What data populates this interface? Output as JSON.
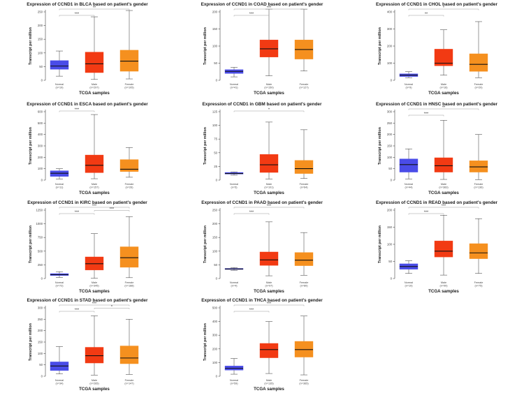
{
  "chart_data": [
    {
      "type": "box",
      "title": "Expression of CCND1 in BLCA based on patient's gender",
      "xlabel": "TCGA samples",
      "ylabel": "Transcript per million",
      "ylim": [
        0,
        250
      ],
      "yticks": [
        0,
        50,
        100,
        150,
        200,
        250
      ],
      "boxes": [
        {
          "name": "Normal",
          "n": "(n=19)",
          "color": "#4a4ce8",
          "min": 15,
          "q1": 40,
          "median": 52,
          "q3": 72,
          "max": 107
        },
        {
          "name": "Male",
          "n": "(n=297)",
          "color": "#f23a13",
          "min": 3,
          "q1": 28,
          "median": 60,
          "q3": 103,
          "max": 232
        },
        {
          "name": "Female",
          "n": "(n=105)",
          "color": "#f5901f",
          "min": 5,
          "q1": 33,
          "median": 70,
          "q3": 110,
          "max": 255
        }
      ],
      "significance": [
        {
          "from": 0,
          "to": 1,
          "label": "***"
        },
        {
          "from": 0,
          "to": 2,
          "label": "**"
        }
      ]
    },
    {
      "type": "box",
      "title": "Expression of CCND1 in COAD based on patient's gender",
      "xlabel": "TCGA samples",
      "ylabel": "Transcript per million",
      "ylim": [
        0,
        200
      ],
      "yticks": [
        0,
        50,
        100,
        150,
        200
      ],
      "boxes": [
        {
          "name": "Normal",
          "n": "(n=41)",
          "color": "#4a4ce8",
          "min": 10,
          "q1": 20,
          "median": 26,
          "q3": 31,
          "max": 38
        },
        {
          "name": "Male",
          "n": "(n=150)",
          "color": "#f23a13",
          "min": 13,
          "q1": 68,
          "median": 92,
          "q3": 118,
          "max": 208
        },
        {
          "name": "Female",
          "n": "(n=127)",
          "color": "#f5901f",
          "min": 27,
          "q1": 62,
          "median": 90,
          "q3": 118,
          "max": 208
        }
      ],
      "significance": [
        {
          "from": 0,
          "to": 1,
          "label": "***"
        },
        {
          "from": 0,
          "to": 2,
          "label": "***"
        }
      ]
    },
    {
      "type": "box",
      "title": "Expression of CCND1 in CHOL based on patient's gender",
      "xlabel": "TCGA samples",
      "ylabel": "Transcript per million",
      "ylim": [
        0,
        400
      ],
      "yticks": [
        0,
        100,
        200,
        300,
        400
      ],
      "boxes": [
        {
          "name": "Normal",
          "n": "(n=9)",
          "color": "#4a4ce8",
          "min": 15,
          "q1": 22,
          "median": 30,
          "q3": 38,
          "max": 50
        },
        {
          "name": "Male",
          "n": "(n=16)",
          "color": "#f23a13",
          "min": 30,
          "q1": 85,
          "median": 100,
          "q3": 182,
          "max": 295
        },
        {
          "name": "Female",
          "n": "(n=20)",
          "color": "#f5901f",
          "min": 15,
          "q1": 52,
          "median": 93,
          "q3": 155,
          "max": 343
        }
      ],
      "significance": [
        {
          "from": 0,
          "to": 1,
          "label": "**"
        },
        {
          "from": 0,
          "to": 2,
          "label": "*"
        }
      ]
    },
    {
      "type": "box",
      "title": "Expression of CCND1 in ESCA based on patient's gender",
      "xlabel": "TCGA samples",
      "ylabel": "Transcript per million",
      "ylim": [
        0,
        600
      ],
      "yticks": [
        0,
        100,
        200,
        300,
        400,
        500,
        600
      ],
      "boxes": [
        {
          "name": "Normal",
          "n": "(n=11)",
          "color": "#4a4ce8",
          "min": 10,
          "q1": 32,
          "median": 60,
          "q3": 82,
          "max": 100
        },
        {
          "name": "Male",
          "n": "(n=157)",
          "color": "#f23a13",
          "min": 12,
          "q1": 65,
          "median": 130,
          "q3": 220,
          "max": 575
        },
        {
          "name": "Female",
          "n": "(n=26)",
          "color": "#f5901f",
          "min": 25,
          "q1": 75,
          "median": 95,
          "q3": 180,
          "max": 285
        }
      ],
      "significance": [
        {
          "from": 0,
          "to": 1,
          "label": "***"
        }
      ]
    },
    {
      "type": "box",
      "title": "Expression of CCND1 in GBM based on patient's gender",
      "xlabel": "TCGA samples",
      "ylabel": "Transcript per million",
      "ylim": [
        0,
        125
      ],
      "yticks": [
        0,
        25,
        50,
        75,
        100,
        125
      ],
      "boxes": [
        {
          "name": "Normal",
          "n": "(n=5)",
          "color": "#4a4ce8",
          "min": 9,
          "q1": 11,
          "median": 12,
          "q3": 14,
          "max": 15
        },
        {
          "name": "Male",
          "n": "(n=101)",
          "color": "#f23a13",
          "min": 2,
          "q1": 14,
          "median": 28,
          "q3": 47,
          "max": 106
        },
        {
          "name": "Female",
          "n": "(n=64)",
          "color": "#f5901f",
          "min": 3,
          "q1": 12,
          "median": 21,
          "q3": 36,
          "max": 92
        }
      ],
      "significance": [
        {
          "from": 0,
          "to": 2,
          "label": "*"
        }
      ]
    },
    {
      "type": "box",
      "title": "Expression of CCND1 in HNSC based on patient's gender",
      "xlabel": "TCGA samples",
      "ylabel": "Transcript per million",
      "ylim": [
        0,
        300
      ],
      "yticks": [
        0,
        50,
        100,
        150,
        200,
        250,
        300
      ],
      "boxes": [
        {
          "name": "Normal",
          "n": "(n=44)",
          "color": "#4a4ce8",
          "min": 5,
          "q1": 35,
          "median": 68,
          "q3": 93,
          "max": 137
        },
        {
          "name": "Male",
          "n": "(n=383)",
          "color": "#f23a13",
          "min": 3,
          "q1": 35,
          "median": 63,
          "q3": 98,
          "max": 262
        },
        {
          "name": "Female",
          "n": "(n=136)",
          "color": "#f5901f",
          "min": 2,
          "q1": 35,
          "median": 58,
          "q3": 85,
          "max": 200
        }
      ],
      "significance": [
        {
          "from": 0,
          "to": 1,
          "label": "***"
        },
        {
          "from": 0,
          "to": 2,
          "label": "**"
        }
      ]
    },
    {
      "type": "box",
      "title": "Expression of CCND1 in KIRC based on patient's gender",
      "xlabel": "TCGA samples",
      "ylabel": "Transcript per million",
      "ylim": [
        0,
        1250
      ],
      "yticks": [
        0,
        250,
        500,
        750,
        1000,
        1250
      ],
      "boxes": [
        {
          "name": "Normal",
          "n": "(n=72)",
          "color": "#4a4ce8",
          "min": 20,
          "q1": 55,
          "median": 70,
          "q3": 90,
          "max": 125
        },
        {
          "name": "Male",
          "n": "(n=345)",
          "color": "#f23a13",
          "min": 5,
          "q1": 155,
          "median": 270,
          "q3": 395,
          "max": 820
        },
        {
          "name": "Female",
          "n": "(n=188)",
          "color": "#f5901f",
          "min": 15,
          "q1": 205,
          "median": 380,
          "q3": 580,
          "max": 1130
        }
      ],
      "significance": [
        {
          "from": 0,
          "to": 1,
          "label": "***"
        },
        {
          "from": 1,
          "to": 2,
          "label": "***"
        },
        {
          "from": 0,
          "to": 2,
          "label": "***"
        }
      ]
    },
    {
      "type": "box",
      "title": "Expression of CCND1 in PAAD based on patient's gender",
      "xlabel": "TCGA samples",
      "ylabel": "Transcript per million",
      "ylim": [
        0,
        250
      ],
      "yticks": [
        0,
        50,
        100,
        150,
        200,
        250
      ],
      "boxes": [
        {
          "name": "Normal",
          "n": "(n=4)",
          "color": "#4a4ce8",
          "min": 30,
          "q1": 33,
          "median": 35,
          "q3": 37,
          "max": 40
        },
        {
          "name": "Male",
          "n": "(n=97)",
          "color": "#f23a13",
          "min": 10,
          "q1": 48,
          "median": 68,
          "q3": 97,
          "max": 207
        },
        {
          "name": "Female",
          "n": "(n=80)",
          "color": "#f5901f",
          "min": 12,
          "q1": 47,
          "median": 67,
          "q3": 95,
          "max": 168
        }
      ],
      "significance": [
        {
          "from": 0,
          "to": 1,
          "label": "***"
        },
        {
          "from": 0,
          "to": 2,
          "label": "***"
        }
      ]
    },
    {
      "type": "box",
      "title": "Expression of CCND1 in READ based on patient's gender",
      "xlabel": "TCGA samples",
      "ylabel": "Transcript per million",
      "ylim": [
        0,
        200
      ],
      "yticks": [
        0,
        50,
        100,
        150,
        200
      ],
      "boxes": [
        {
          "name": "Normal",
          "n": "(n=10)",
          "color": "#4a4ce8",
          "min": 15,
          "q1": 27,
          "median": 35,
          "q3": 43,
          "max": 52
        },
        {
          "name": "Male",
          "n": "(n=90)",
          "color": "#f23a13",
          "min": 10,
          "q1": 63,
          "median": 80,
          "q3": 110,
          "max": 185
        },
        {
          "name": "Female",
          "n": "(n=75)",
          "color": "#f5901f",
          "min": 15,
          "q1": 58,
          "median": 75,
          "q3": 102,
          "max": 175
        }
      ],
      "significance": [
        {
          "from": 0,
          "to": 1,
          "label": "***"
        },
        {
          "from": 0,
          "to": 2,
          "label": "***"
        }
      ]
    },
    {
      "type": "box",
      "title": "Expression of CCND1 in STAD based on patient's gender",
      "xlabel": "TCGA samples",
      "ylabel": "Transcript per million",
      "ylim": [
        0,
        300
      ],
      "yticks": [
        0,
        50,
        100,
        150,
        200,
        250,
        300
      ],
      "boxes": [
        {
          "name": "Normal",
          "n": "(n=34)",
          "color": "#4a4ce8",
          "min": 10,
          "q1": 25,
          "median": 45,
          "q3": 63,
          "max": 130
        },
        {
          "name": "Male",
          "n": "(n=265)",
          "color": "#f23a13",
          "min": 5,
          "q1": 58,
          "median": 90,
          "q3": 127,
          "max": 265
        },
        {
          "name": "Female",
          "n": "(n=147)",
          "color": "#f5901f",
          "min": 8,
          "q1": 55,
          "median": 80,
          "q3": 133,
          "max": 250
        }
      ],
      "significance": [
        {
          "from": 0,
          "to": 1,
          "label": "***"
        },
        {
          "from": 1,
          "to": 2,
          "label": "*"
        },
        {
          "from": 0,
          "to": 2,
          "label": "***"
        }
      ]
    },
    {
      "type": "box",
      "title": "Expression of CCND1 in THCA based on patient's gender",
      "xlabel": "TCGA samples",
      "ylabel": "Transcript per million",
      "ylim": [
        0,
        500
      ],
      "yticks": [
        0,
        100,
        200,
        300,
        400,
        500
      ],
      "boxes": [
        {
          "name": "Normal",
          "n": "(n=59)",
          "color": "#4a4ce8",
          "min": 15,
          "q1": 45,
          "median": 58,
          "q3": 75,
          "max": 130
        },
        {
          "name": "Male",
          "n": "(n=135)",
          "color": "#f23a13",
          "min": 20,
          "q1": 135,
          "median": 195,
          "q3": 240,
          "max": 400
        },
        {
          "name": "Female",
          "n": "(n=365)",
          "color": "#f5901f",
          "min": 10,
          "q1": 140,
          "median": 195,
          "q3": 255,
          "max": 440
        }
      ],
      "significance": [
        {
          "from": 0,
          "to": 1,
          "label": "***"
        },
        {
          "from": 0,
          "to": 2,
          "label": "***"
        }
      ]
    }
  ]
}
